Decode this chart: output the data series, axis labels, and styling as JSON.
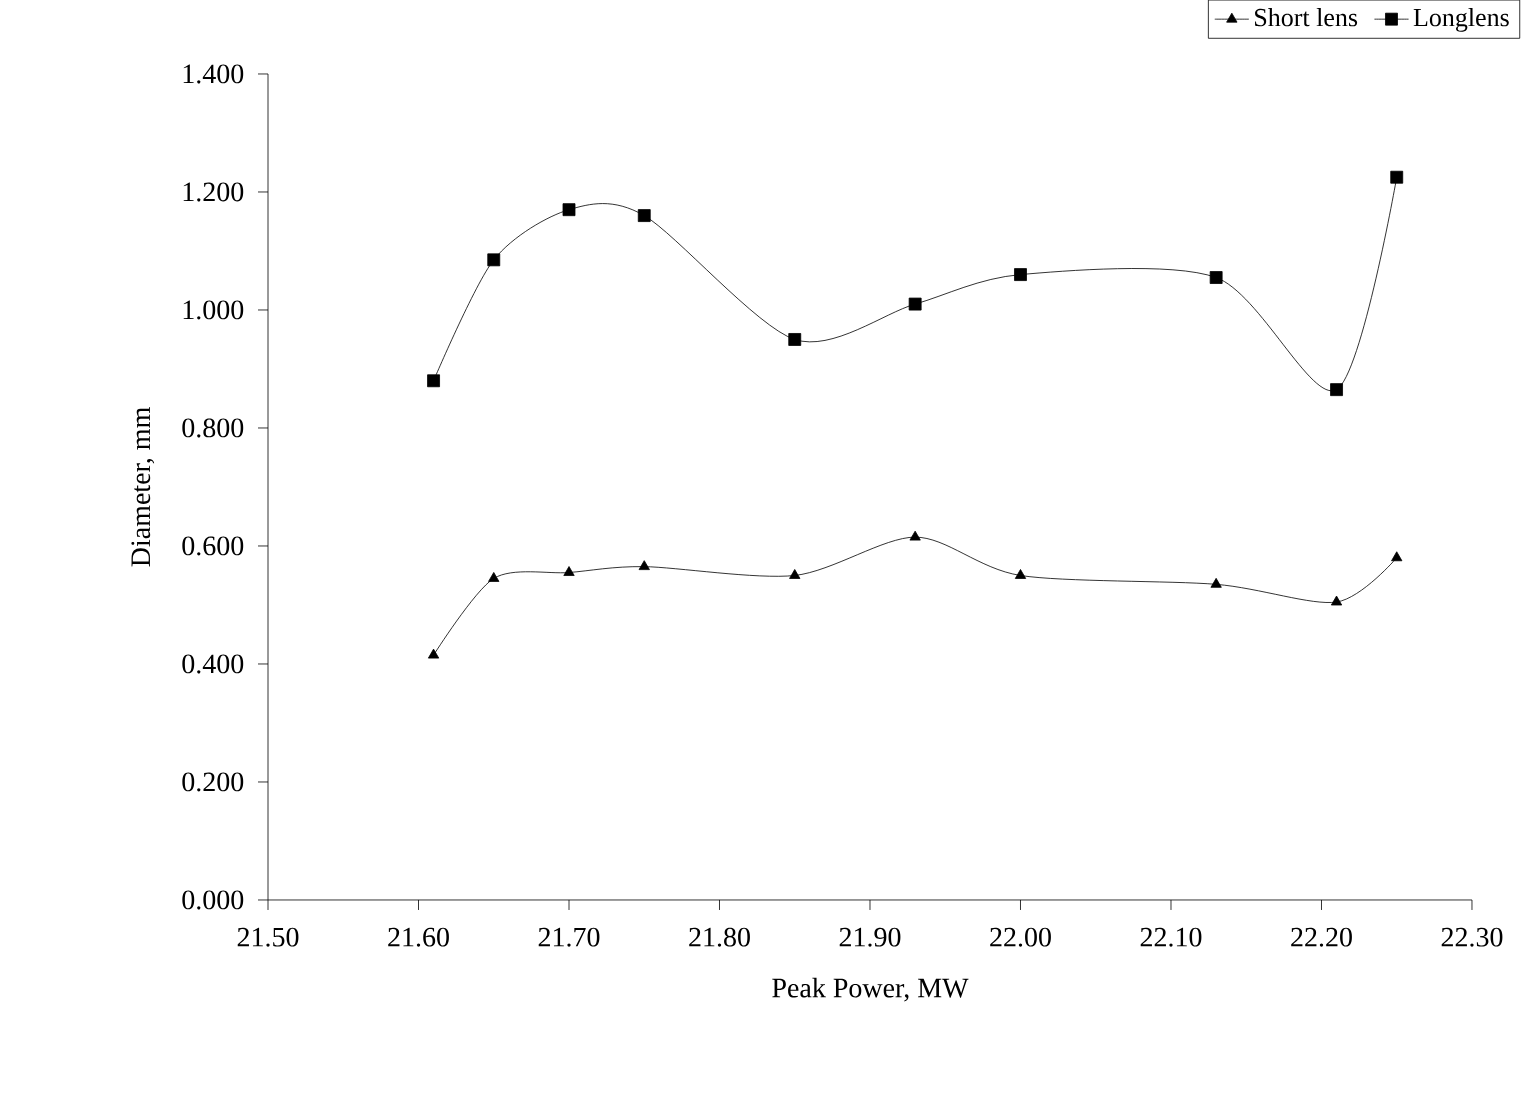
{
  "chart_data": {
    "type": "line",
    "xlabel": "Peak Power, MW",
    "ylabel": "Diameter, mm",
    "legend": "top right",
    "grid": false,
    "xlim": [
      21.5,
      22.3
    ],
    "ylim": [
      0,
      1.4
    ],
    "xticks": [
      {
        "value": 21.5,
        "label": "21.50"
      },
      {
        "value": 21.6,
        "label": "21.60"
      },
      {
        "value": 21.7,
        "label": "21.70"
      },
      {
        "value": 21.8,
        "label": "21.80"
      },
      {
        "value": 21.9,
        "label": "21.90"
      },
      {
        "value": 22.0,
        "label": "22.00"
      },
      {
        "value": 22.1,
        "label": "22.10"
      },
      {
        "value": 22.2,
        "label": "22.20"
      },
      {
        "value": 22.3,
        "label": "22.30"
      }
    ],
    "yticks": [
      {
        "value": 0,
        "label": "0.000"
      },
      {
        "value": 0.2,
        "label": "0.200"
      },
      {
        "value": 0.4,
        "label": "0.400"
      },
      {
        "value": 0.6,
        "label": "0.600"
      },
      {
        "value": 0.8,
        "label": "0.800"
      },
      {
        "value": 1.0,
        "label": "1.000"
      },
      {
        "value": 1.2,
        "label": "1.200"
      },
      {
        "value": 1.4,
        "label": "1.400"
      }
    ],
    "x": [
      21.61,
      21.65,
      21.7,
      21.75,
      21.85,
      21.93,
      22.0,
      22.13,
      22.21,
      22.25
    ],
    "series": [
      {
        "name": "Short lens",
        "color": "#000000",
        "marker": "triangle",
        "values": [
          0.415,
          0.545,
          0.555,
          0.565,
          0.55,
          0.615,
          0.55,
          0.535,
          0.505,
          0.58
        ]
      },
      {
        "name": "Longlens",
        "color": "#000000",
        "marker": "square",
        "values": [
          0.88,
          1.085,
          1.17,
          1.16,
          0.95,
          1.01,
          1.06,
          1.055,
          0.865,
          1.225
        ]
      }
    ]
  }
}
